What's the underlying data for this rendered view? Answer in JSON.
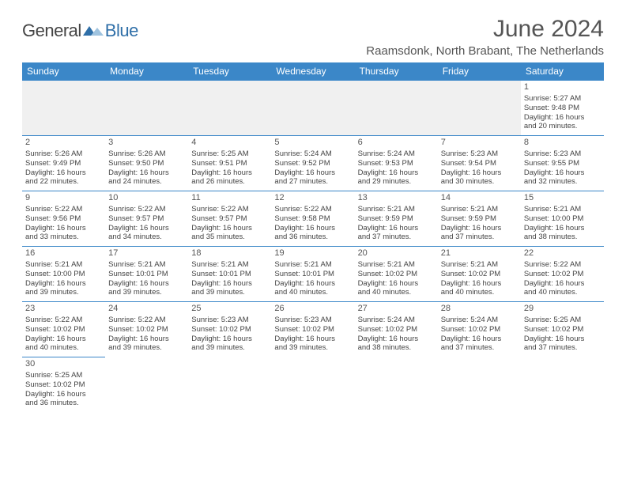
{
  "logo": {
    "text1": "General",
    "text2": "Blue"
  },
  "title": "June 2024",
  "location": "Raamsdonk, North Brabant, The Netherlands",
  "colors": {
    "headerBg": "#3b87c8",
    "headerFg": "#ffffff",
    "border": "#3b87c8",
    "text": "#444444"
  },
  "weekdays": [
    "Sunday",
    "Monday",
    "Tuesday",
    "Wednesday",
    "Thursday",
    "Friday",
    "Saturday"
  ],
  "weeks": [
    [
      null,
      null,
      null,
      null,
      null,
      null,
      {
        "n": "1",
        "sr": "Sunrise: 5:27 AM",
        "ss": "Sunset: 9:48 PM",
        "d1": "Daylight: 16 hours",
        "d2": "and 20 minutes."
      }
    ],
    [
      {
        "n": "2",
        "sr": "Sunrise: 5:26 AM",
        "ss": "Sunset: 9:49 PM",
        "d1": "Daylight: 16 hours",
        "d2": "and 22 minutes."
      },
      {
        "n": "3",
        "sr": "Sunrise: 5:26 AM",
        "ss": "Sunset: 9:50 PM",
        "d1": "Daylight: 16 hours",
        "d2": "and 24 minutes."
      },
      {
        "n": "4",
        "sr": "Sunrise: 5:25 AM",
        "ss": "Sunset: 9:51 PM",
        "d1": "Daylight: 16 hours",
        "d2": "and 26 minutes."
      },
      {
        "n": "5",
        "sr": "Sunrise: 5:24 AM",
        "ss": "Sunset: 9:52 PM",
        "d1": "Daylight: 16 hours",
        "d2": "and 27 minutes."
      },
      {
        "n": "6",
        "sr": "Sunrise: 5:24 AM",
        "ss": "Sunset: 9:53 PM",
        "d1": "Daylight: 16 hours",
        "d2": "and 29 minutes."
      },
      {
        "n": "7",
        "sr": "Sunrise: 5:23 AM",
        "ss": "Sunset: 9:54 PM",
        "d1": "Daylight: 16 hours",
        "d2": "and 30 minutes."
      },
      {
        "n": "8",
        "sr": "Sunrise: 5:23 AM",
        "ss": "Sunset: 9:55 PM",
        "d1": "Daylight: 16 hours",
        "d2": "and 32 minutes."
      }
    ],
    [
      {
        "n": "9",
        "sr": "Sunrise: 5:22 AM",
        "ss": "Sunset: 9:56 PM",
        "d1": "Daylight: 16 hours",
        "d2": "and 33 minutes."
      },
      {
        "n": "10",
        "sr": "Sunrise: 5:22 AM",
        "ss": "Sunset: 9:57 PM",
        "d1": "Daylight: 16 hours",
        "d2": "and 34 minutes."
      },
      {
        "n": "11",
        "sr": "Sunrise: 5:22 AM",
        "ss": "Sunset: 9:57 PM",
        "d1": "Daylight: 16 hours",
        "d2": "and 35 minutes."
      },
      {
        "n": "12",
        "sr": "Sunrise: 5:22 AM",
        "ss": "Sunset: 9:58 PM",
        "d1": "Daylight: 16 hours",
        "d2": "and 36 minutes."
      },
      {
        "n": "13",
        "sr": "Sunrise: 5:21 AM",
        "ss": "Sunset: 9:59 PM",
        "d1": "Daylight: 16 hours",
        "d2": "and 37 minutes."
      },
      {
        "n": "14",
        "sr": "Sunrise: 5:21 AM",
        "ss": "Sunset: 9:59 PM",
        "d1": "Daylight: 16 hours",
        "d2": "and 37 minutes."
      },
      {
        "n": "15",
        "sr": "Sunrise: 5:21 AM",
        "ss": "Sunset: 10:00 PM",
        "d1": "Daylight: 16 hours",
        "d2": "and 38 minutes."
      }
    ],
    [
      {
        "n": "16",
        "sr": "Sunrise: 5:21 AM",
        "ss": "Sunset: 10:00 PM",
        "d1": "Daylight: 16 hours",
        "d2": "and 39 minutes."
      },
      {
        "n": "17",
        "sr": "Sunrise: 5:21 AM",
        "ss": "Sunset: 10:01 PM",
        "d1": "Daylight: 16 hours",
        "d2": "and 39 minutes."
      },
      {
        "n": "18",
        "sr": "Sunrise: 5:21 AM",
        "ss": "Sunset: 10:01 PM",
        "d1": "Daylight: 16 hours",
        "d2": "and 39 minutes."
      },
      {
        "n": "19",
        "sr": "Sunrise: 5:21 AM",
        "ss": "Sunset: 10:01 PM",
        "d1": "Daylight: 16 hours",
        "d2": "and 40 minutes."
      },
      {
        "n": "20",
        "sr": "Sunrise: 5:21 AM",
        "ss": "Sunset: 10:02 PM",
        "d1": "Daylight: 16 hours",
        "d2": "and 40 minutes."
      },
      {
        "n": "21",
        "sr": "Sunrise: 5:21 AM",
        "ss": "Sunset: 10:02 PM",
        "d1": "Daylight: 16 hours",
        "d2": "and 40 minutes."
      },
      {
        "n": "22",
        "sr": "Sunrise: 5:22 AM",
        "ss": "Sunset: 10:02 PM",
        "d1": "Daylight: 16 hours",
        "d2": "and 40 minutes."
      }
    ],
    [
      {
        "n": "23",
        "sr": "Sunrise: 5:22 AM",
        "ss": "Sunset: 10:02 PM",
        "d1": "Daylight: 16 hours",
        "d2": "and 40 minutes."
      },
      {
        "n": "24",
        "sr": "Sunrise: 5:22 AM",
        "ss": "Sunset: 10:02 PM",
        "d1": "Daylight: 16 hours",
        "d2": "and 39 minutes."
      },
      {
        "n": "25",
        "sr": "Sunrise: 5:23 AM",
        "ss": "Sunset: 10:02 PM",
        "d1": "Daylight: 16 hours",
        "d2": "and 39 minutes."
      },
      {
        "n": "26",
        "sr": "Sunrise: 5:23 AM",
        "ss": "Sunset: 10:02 PM",
        "d1": "Daylight: 16 hours",
        "d2": "and 39 minutes."
      },
      {
        "n": "27",
        "sr": "Sunrise: 5:24 AM",
        "ss": "Sunset: 10:02 PM",
        "d1": "Daylight: 16 hours",
        "d2": "and 38 minutes."
      },
      {
        "n": "28",
        "sr": "Sunrise: 5:24 AM",
        "ss": "Sunset: 10:02 PM",
        "d1": "Daylight: 16 hours",
        "d2": "and 37 minutes."
      },
      {
        "n": "29",
        "sr": "Sunrise: 5:25 AM",
        "ss": "Sunset: 10:02 PM",
        "d1": "Daylight: 16 hours",
        "d2": "and 37 minutes."
      }
    ],
    [
      {
        "n": "30",
        "sr": "Sunrise: 5:25 AM",
        "ss": "Sunset: 10:02 PM",
        "d1": "Daylight: 16 hours",
        "d2": "and 36 minutes."
      },
      null,
      null,
      null,
      null,
      null,
      null
    ]
  ]
}
